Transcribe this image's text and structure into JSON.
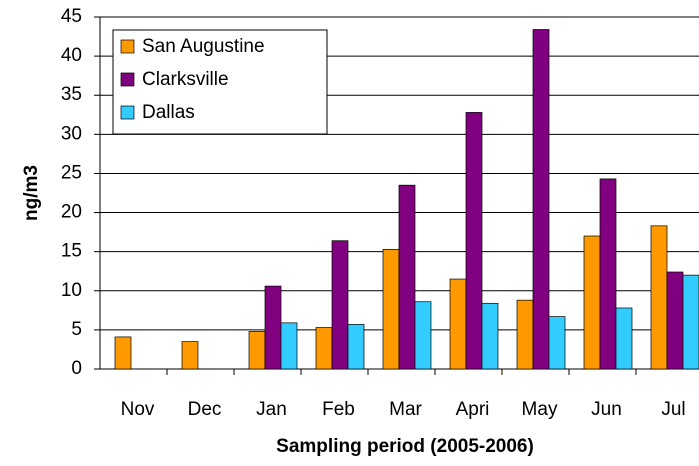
{
  "chart_data": {
    "type": "bar",
    "x_label": "Sampling period (2005-2006)",
    "y_label": "ng/m3",
    "categories": [
      "Nov",
      "Dec",
      "Jan",
      "Feb",
      "Mar",
      "Apri",
      "May",
      "Jun",
      "Jul"
    ],
    "series": [
      {
        "name": "San Augustine",
        "color": "#ff9900",
        "values": [
          4.1,
          3.5,
          4.8,
          5.3,
          15.3,
          11.5,
          8.8,
          17.0,
          18.3
        ]
      },
      {
        "name": "Clarksville",
        "color": "#800080",
        "values": [
          null,
          null,
          10.6,
          16.4,
          23.5,
          32.8,
          43.4,
          24.3,
          12.4
        ]
      },
      {
        "name": "Dallas",
        "color": "#33ccff",
        "values": [
          null,
          null,
          5.9,
          5.7,
          8.6,
          8.4,
          6.7,
          7.8,
          12.0
        ]
      }
    ],
    "ylim": [
      0,
      45
    ],
    "yticks": [
      0,
      5,
      10,
      15,
      20,
      25,
      30,
      35,
      40,
      45
    ],
    "grid": true,
    "legend": "top-left"
  }
}
